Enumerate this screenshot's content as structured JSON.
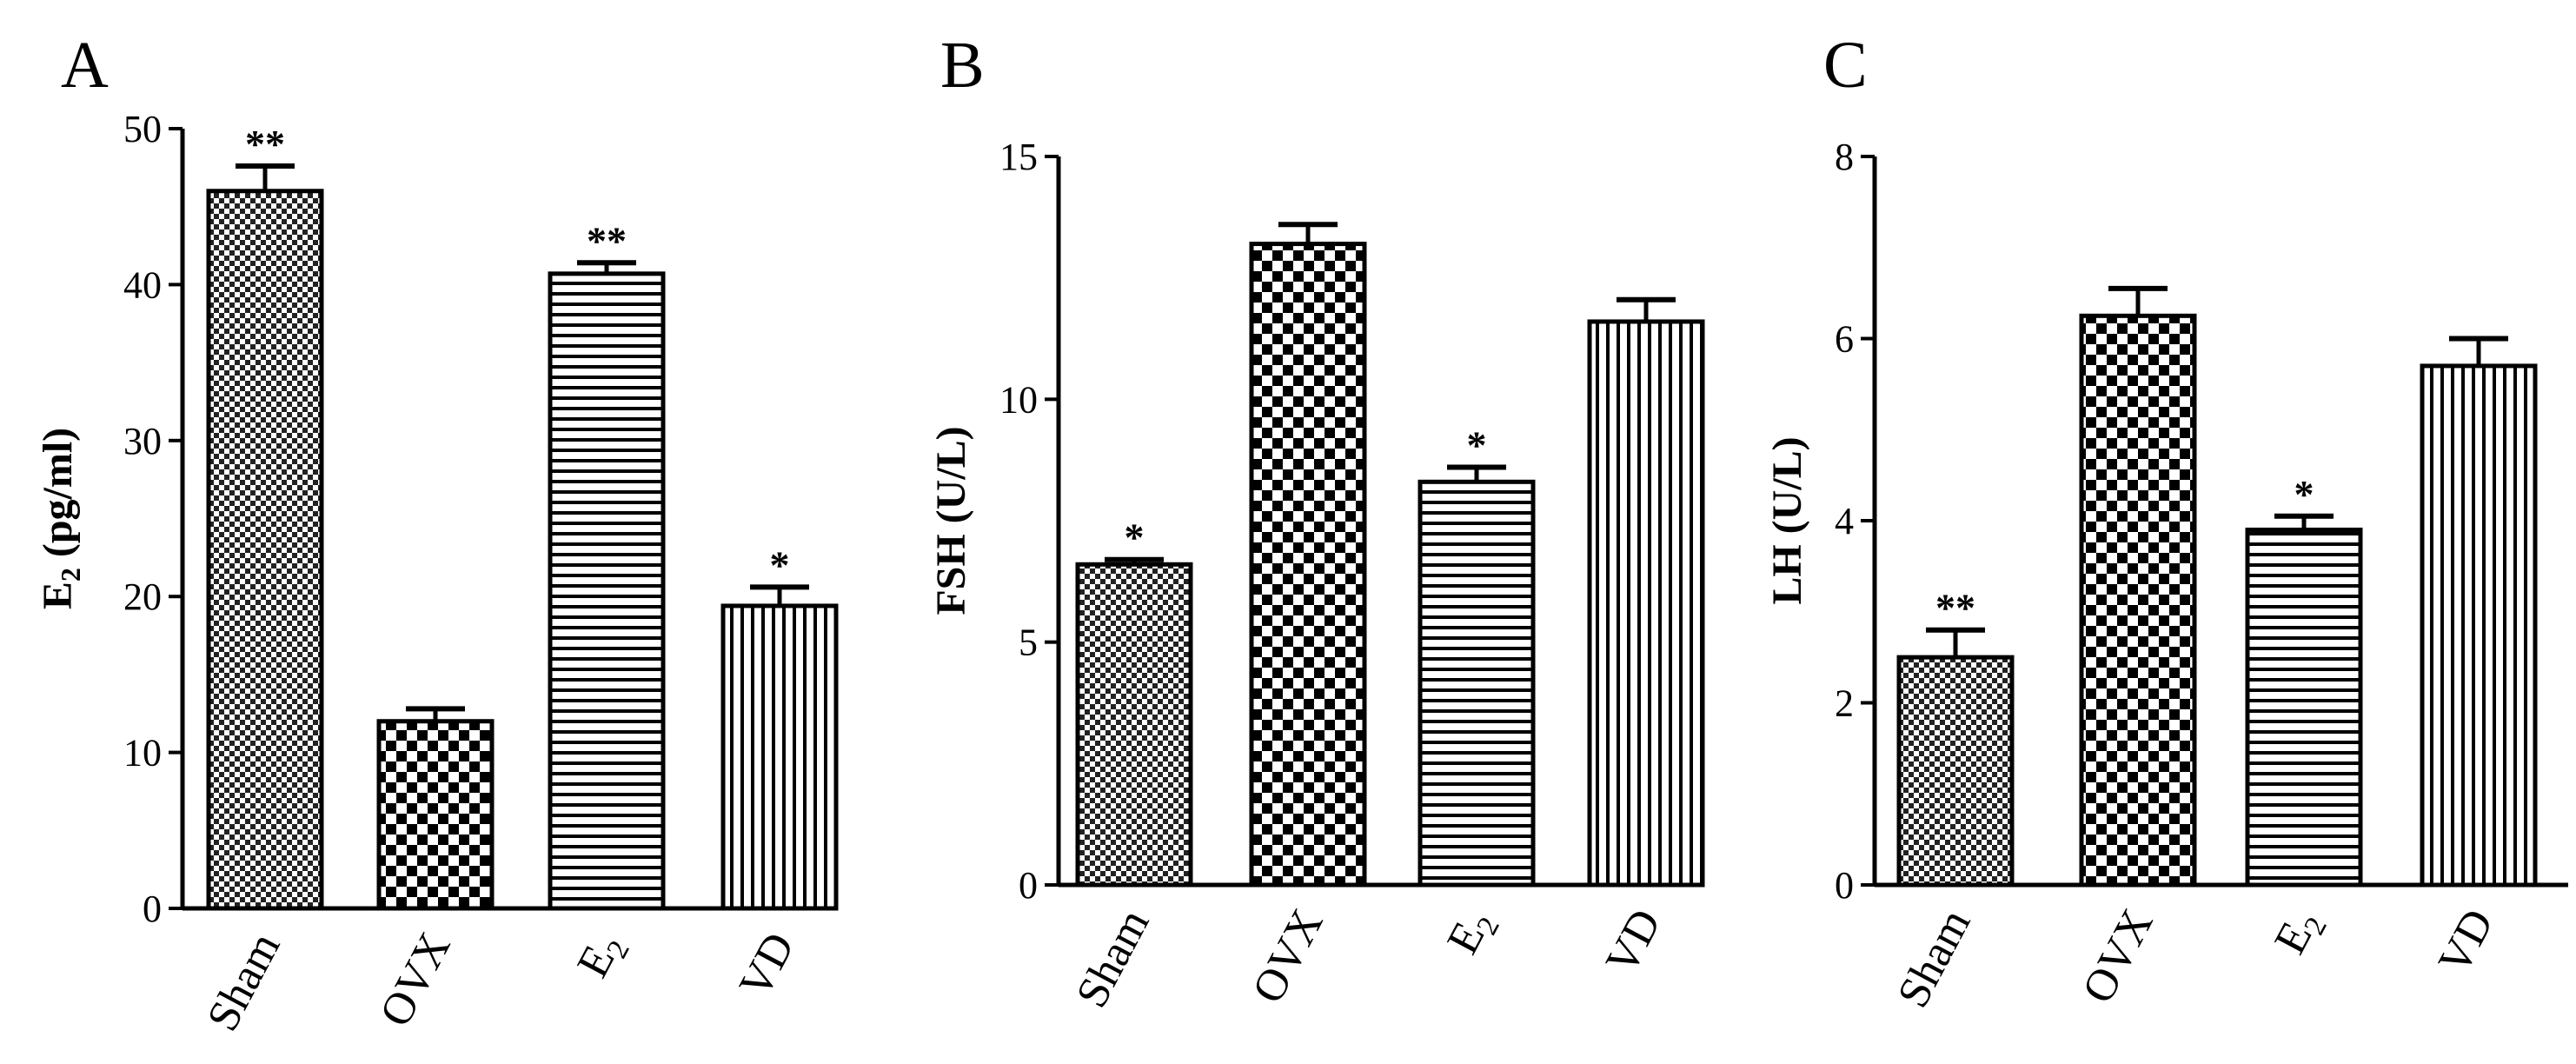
{
  "chart_data": [
    {
      "panel": "A",
      "type": "bar",
      "ylabel": "E",
      "ylabel_sub": "2",
      "ylabel_rest": " (pg/ml)",
      "ylim": [
        0,
        50
      ],
      "yticks": [
        0,
        10,
        20,
        30,
        40,
        50
      ],
      "bars": [
        {
          "label": "Sham",
          "sub": "",
          "value": 46.0,
          "error": 1.6,
          "sig": "**",
          "pattern": "fine-check"
        },
        {
          "label": "OVX",
          "sub": "",
          "value": 12.0,
          "error": 0.8,
          "sig": "",
          "pattern": "coarse-check"
        },
        {
          "label": "E",
          "sub": "2",
          "value": 40.7,
          "error": 0.7,
          "sig": "**",
          "pattern": "hstripes"
        },
        {
          "label": "VD",
          "sub": "",
          "value": 19.4,
          "error": 1.2,
          "sig": "*",
          "pattern": "vstripes"
        }
      ]
    },
    {
      "panel": "B",
      "type": "bar",
      "ylabel": "FSH (U/L)",
      "ylabel_sub": "",
      "ylabel_rest": "",
      "ylim": [
        0,
        15
      ],
      "yticks": [
        0,
        5,
        10,
        15
      ],
      "bars": [
        {
          "label": "Sham",
          "sub": "",
          "value": 6.6,
          "error": 0.1,
          "sig": "*",
          "pattern": "fine-check"
        },
        {
          "label": "OVX",
          "sub": "",
          "value": 13.2,
          "error": 0.4,
          "sig": "",
          "pattern": "coarse-check"
        },
        {
          "label": "E",
          "sub": "2",
          "value": 8.3,
          "error": 0.3,
          "sig": "*",
          "pattern": "hstripes"
        },
        {
          "label": "VD",
          "sub": "",
          "value": 11.6,
          "error": 0.45,
          "sig": "",
          "pattern": "vstripes"
        }
      ]
    },
    {
      "panel": "C",
      "type": "bar",
      "ylabel": "LH (U/L)",
      "ylabel_sub": "",
      "ylabel_rest": "",
      "ylim": [
        0,
        8
      ],
      "yticks": [
        0,
        2,
        4,
        6,
        8
      ],
      "bars": [
        {
          "label": "Sham",
          "sub": "",
          "value": 2.5,
          "error": 0.3,
          "sig": "**",
          "pattern": "fine-check"
        },
        {
          "label": "OVX",
          "sub": "",
          "value": 6.25,
          "error": 0.3,
          "sig": "",
          "pattern": "coarse-check"
        },
        {
          "label": "E",
          "sub": "2",
          "value": 3.9,
          "error": 0.15,
          "sig": "*",
          "pattern": "hstripes"
        },
        {
          "label": "VD",
          "sub": "",
          "value": 5.7,
          "error": 0.3,
          "sig": "",
          "pattern": "vstripes"
        }
      ]
    }
  ]
}
